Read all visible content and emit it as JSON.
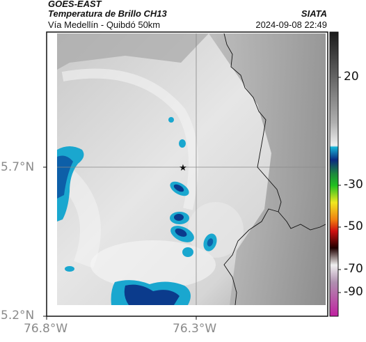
{
  "header": {
    "satellite": "GOES-EAST",
    "product": "Temperatura de Brillo CH13",
    "location": "Vía Medellín - Quibdó 50km",
    "organization": "SIATA",
    "datetime": "2024-09-08 22:49"
  },
  "axes": {
    "lat_ticks": [
      "5.7°N",
      "5.2°N"
    ],
    "lon_ticks": [
      "76.8°W",
      "76.3°W"
    ]
  },
  "colorbar": {
    "ticks": [
      "20",
      "-30",
      "-50",
      "-70",
      "-90"
    ],
    "colors": [
      "#2a2a2a",
      "#808080",
      "#d8d8d8",
      "#1aa0c8",
      "#0b3b8c",
      "#1ea01e",
      "#f0e020",
      "#e03010",
      "#000000",
      "#c8c8c8",
      "#a02090"
    ]
  },
  "map": {
    "marker": "star-icon"
  }
}
